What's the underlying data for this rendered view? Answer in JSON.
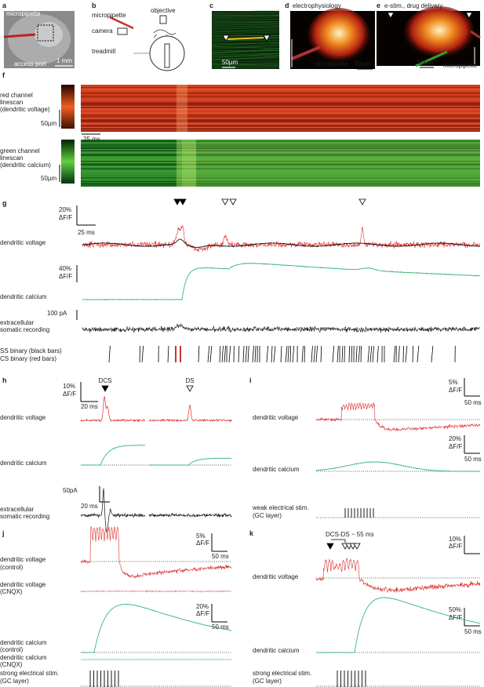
{
  "panels": [
    {
      "texts": [
        "a",
        "micropipette",
        "access port",
        "1 mm"
      ]
    },
    {
      "texts": [
        "b",
        "micropipette",
        "objective",
        "camera",
        "treadmill"
      ]
    },
    {
      "texts": [
        "c",
        "50µm"
      ]
    },
    {
      "texts": [
        "d",
        "electrophysiology",
        "50µm",
        "micropipette"
      ]
    },
    {
      "texts": [
        "e",
        "e-stim., drug delivery",
        "50µm",
        "micropipette"
      ]
    },
    {
      "texts": [
        "f",
        "red channel",
        "linescan",
        "(dendritic voltage)",
        "50µm",
        "25 ms",
        "green channel",
        "linescan",
        "(dendritic calcium)",
        "50µm"
      ]
    },
    {
      "texts": [
        "g",
        "20%",
        "ΔF/F",
        "25 ms",
        "dendritic voltage",
        "40%",
        "ΔF/F",
        "dendritic calcium",
        "100 pA",
        "extracellular",
        "somatic recording",
        "SS binary (black bars)",
        "CS binary (red bars)"
      ]
    },
    {
      "texts": [
        "h",
        "10%",
        "ΔF/F",
        "20 ms",
        "DCS",
        "DS",
        "dendritic voltage",
        "dendritic calcium",
        "50pA",
        "20 ms",
        "extracellular",
        "somatic recording"
      ]
    },
    {
      "texts": [
        "i",
        "5%",
        "ΔF/F",
        "50 ms",
        "dendritic voltage",
        "20%",
        "ΔF/F",
        "50 ms",
        "dendritic calcium",
        "weak electrical stim.",
        "(GC layer)"
      ]
    },
    {
      "texts": [
        "j",
        "5%",
        "ΔF/F",
        "50 ms",
        "dendritic voltage",
        "(control)",
        "dendritic voltage",
        "(CNQX)",
        "20%",
        "ΔF/F",
        "50 ms",
        "dendritic calcium",
        "(control)",
        "dendritic calcium",
        "(CNQX)",
        "strong electrical stim.",
        "(GC layer)"
      ]
    },
    {
      "texts": [
        "k",
        "DCS-DS ~ 55 ms",
        "10%",
        "ΔF/F",
        "dendritic voltage",
        "50%",
        "ΔF/F",
        "50 ms",
        "dendritic calcium",
        "strong electrical stim.",
        "(GC layer)"
      ]
    }
  ]
}
